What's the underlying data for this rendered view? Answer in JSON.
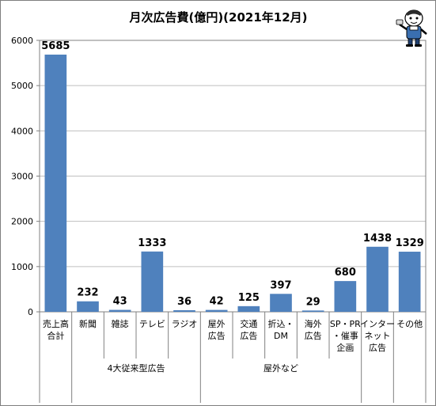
{
  "chart_data": {
    "type": "bar",
    "title": "月次広告費(億円)(2021年12月)",
    "categories": [
      [
        "売上高",
        "合計"
      ],
      [
        "新聞"
      ],
      [
        "雑誌"
      ],
      [
        "テレビ"
      ],
      [
        "ラジオ"
      ],
      [
        "屋外",
        "広告"
      ],
      [
        "交通",
        "広告"
      ],
      [
        "折込・",
        "DM"
      ],
      [
        "海外",
        "広告"
      ],
      [
        "SP・PR",
        "・催事",
        "企画"
      ],
      [
        "インター",
        "ネット",
        "広告"
      ],
      [
        "その他"
      ]
    ],
    "values": [
      5685,
      232,
      43,
      1333,
      36,
      42,
      125,
      397,
      29,
      680,
      1438,
      1329
    ],
    "data_labels": [
      "5685",
      "232",
      "43",
      "1333",
      "36",
      "42",
      "125",
      "397",
      "29",
      "680",
      "1438",
      "1329"
    ],
    "ylim": [
      0,
      6000
    ],
    "yticks": [
      "0",
      "1000",
      "2000",
      "3000",
      "4000",
      "5000",
      "6000"
    ],
    "groups": [
      {
        "label": "4大従来型広告",
        "from": 1,
        "to": 4
      },
      {
        "label": "屋外など",
        "from": 5,
        "to": 9
      }
    ],
    "grid": true,
    "legend": "none",
    "colors": {
      "bar": "#4f81bd",
      "grid": "#bfbfbf",
      "axis": "#808080"
    }
  },
  "mascot": {
    "icon": "reporter-mascot-icon"
  }
}
